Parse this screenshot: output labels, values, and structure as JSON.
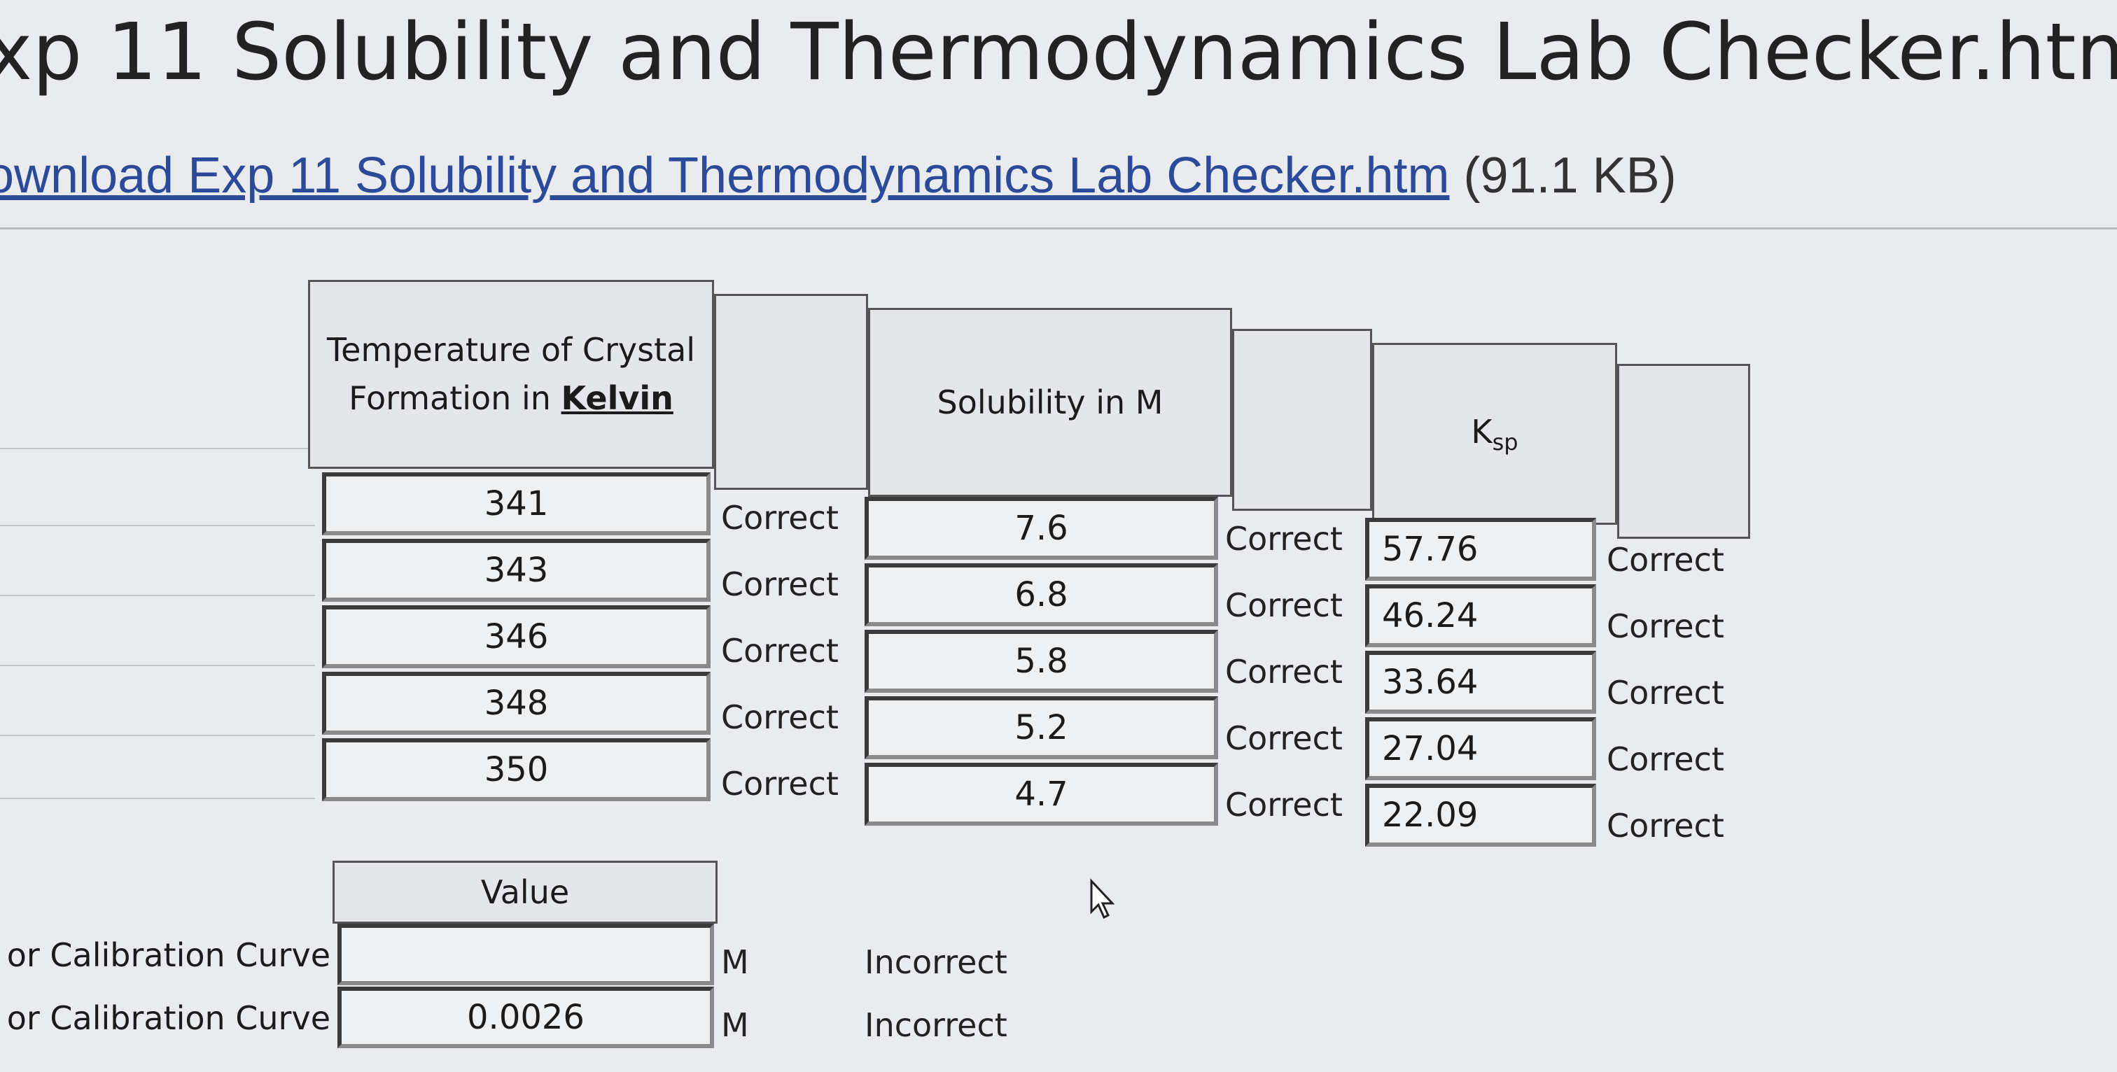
{
  "header": {
    "title": "xp 11 Solubility and Thermodynamics Lab Checker.htm"
  },
  "download": {
    "link": "ownload Exp 11 Solubility and Thermodynamics Lab Checker.htm",
    "size": "(91.1 KB)"
  },
  "table": {
    "headers": {
      "temperature": "Temperature of Crystal Formation in",
      "temperature_unit": "Kelvin",
      "solubility": "Solubility in M",
      "ksp": "K",
      "ksp_sub": "sp"
    },
    "rows": [
      [
        "341",
        "Correct",
        "7.6",
        "Correct",
        "57.76",
        "Correct"
      ],
      [
        "343",
        "Correct",
        "6.8",
        "Correct",
        "46.24",
        "Correct"
      ],
      [
        "346",
        "Correct",
        "5.8",
        "Correct",
        "33.64",
        "Correct"
      ],
      [
        "348",
        "Correct",
        "5.2",
        "Correct",
        "27.04",
        "Correct"
      ],
      [
        "350",
        "Correct",
        "4.7",
        "Correct",
        "22.09",
        "Correct"
      ]
    ]
  },
  "calibration": {
    "header": "Value",
    "rows": [
      {
        "label": "or Calibration Curve",
        "unit": "M",
        "status": "Incorrect"
      },
      {
        "label": "or Calibration Curve",
        "value": "0.0026",
        "unit": "M",
        "status": "Incorrect"
      }
    ]
  }
}
